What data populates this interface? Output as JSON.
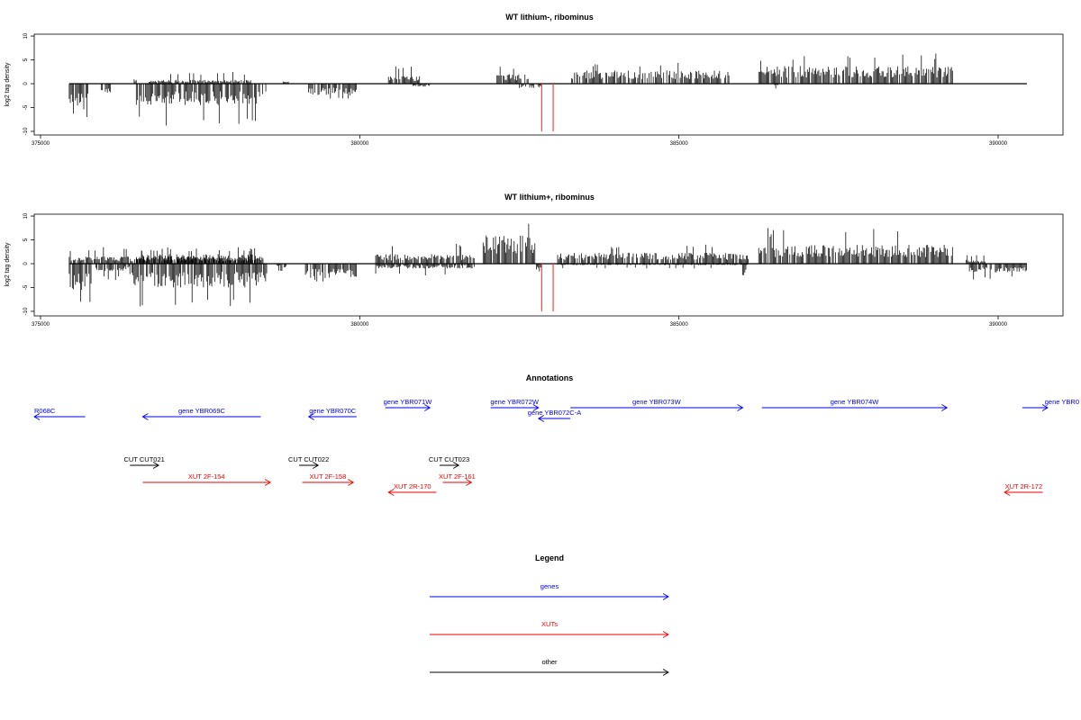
{
  "colors": {
    "genes": "#0000ee",
    "xuts": "#ee0000",
    "other": "#000000",
    "marker": "#ff3333"
  },
  "chart_data": [
    {
      "type": "bar",
      "title": "WT lithium-, ribominus",
      "ylabel": "log2 tag density",
      "xlim": [
        375000,
        391000
      ],
      "ylim": [
        -10,
        10
      ],
      "xticks": [
        "375000",
        "380000",
        "385000",
        "390000"
      ],
      "yticks": [
        "-10",
        "-5",
        "0",
        "5",
        "10"
      ],
      "grid": false,
      "markers_x": [
        382850,
        383030
      ],
      "segments": [
        {
          "start": 375450,
          "end": 375750,
          "sign": -1,
          "amp": 5.0,
          "spike": 7.0
        },
        {
          "start": 375950,
          "end": 376100,
          "sign": -1,
          "amp": 2.0,
          "spike": 3.5
        },
        {
          "start": 376450,
          "end": 376500,
          "sign": 1,
          "amp": 1.5,
          "spike": 3.3
        },
        {
          "start": 376500,
          "end": 378550,
          "sign": -1,
          "amp": 4.5,
          "spike": 9.0
        },
        {
          "start": 376700,
          "end": 378300,
          "sign": 1,
          "amp": 0.8,
          "spike": 2.5
        },
        {
          "start": 378800,
          "end": 378900,
          "sign": 1,
          "amp": 0.6,
          "spike": 1.8
        },
        {
          "start": 379200,
          "end": 379950,
          "sign": -1,
          "amp": 2.5,
          "spike": 3.5
        },
        {
          "start": 380450,
          "end": 380950,
          "sign": 1,
          "amp": 1.6,
          "spike": 4.0
        },
        {
          "start": 380800,
          "end": 381100,
          "sign": -1,
          "amp": 0.6,
          "spike": 3.5
        },
        {
          "start": 382150,
          "end": 382650,
          "sign": 1,
          "amp": 2.0,
          "spike": 3.9
        },
        {
          "start": 382500,
          "end": 382850,
          "sign": -1,
          "amp": 1.0,
          "spike": 3.0
        },
        {
          "start": 383300,
          "end": 385800,
          "sign": 1,
          "amp": 2.8,
          "spike": 4.5
        },
        {
          "start": 386250,
          "end": 389300,
          "sign": 1,
          "amp": 3.7,
          "spike": 6.4
        },
        {
          "start": 386500,
          "end": 386550,
          "sign": -1,
          "amp": 0.5,
          "spike": 1.0
        }
      ]
    },
    {
      "type": "bar",
      "title": "WT lithium+, ribominus",
      "ylabel": "log2 tag density",
      "xlim": [
        375000,
        391000
      ],
      "ylim": [
        -10,
        10
      ],
      "xticks": [
        "375000",
        "380000",
        "385000",
        "390000"
      ],
      "yticks": [
        "-10",
        "-5",
        "0",
        "5",
        "10"
      ],
      "grid": false,
      "markers_x": [
        382850,
        383030
      ],
      "segments": [
        {
          "start": 375450,
          "end": 375800,
          "sign": -1,
          "amp": 5.5,
          "spike": 9.5
        },
        {
          "start": 375450,
          "end": 378500,
          "sign": 1,
          "amp": 1.5,
          "spike": 3.5
        },
        {
          "start": 375850,
          "end": 376400,
          "sign": -1,
          "amp": 1.5,
          "spike": 3.5
        },
        {
          "start": 376400,
          "end": 378550,
          "sign": -1,
          "amp": 5.0,
          "spike": 10.0
        },
        {
          "start": 376500,
          "end": 378400,
          "sign": 1,
          "amp": 2.0,
          "spike": 3.3
        },
        {
          "start": 378700,
          "end": 378850,
          "sign": -1,
          "amp": 0.8,
          "spike": 1.8
        },
        {
          "start": 379150,
          "end": 379950,
          "sign": -1,
          "amp": 3.0,
          "spike": 4.5
        },
        {
          "start": 380250,
          "end": 381800,
          "sign": 1,
          "amp": 2.0,
          "spike": 4.5
        },
        {
          "start": 380250,
          "end": 381800,
          "sign": -1,
          "amp": 1.0,
          "spike": 2.5
        },
        {
          "start": 381900,
          "end": 382750,
          "sign": 1,
          "amp": 6.0,
          "spike": 9.5
        },
        {
          "start": 382750,
          "end": 382850,
          "sign": -1,
          "amp": 1.2,
          "spike": 1.8
        },
        {
          "start": 383100,
          "end": 386100,
          "sign": 1,
          "amp": 2.3,
          "spike": 4.0
        },
        {
          "start": 383100,
          "end": 386100,
          "sign": -1,
          "amp": 0.3,
          "spike": 1.0
        },
        {
          "start": 386000,
          "end": 386050,
          "sign": -1,
          "amp": 2.5,
          "spike": 3.5
        },
        {
          "start": 386250,
          "end": 389300,
          "sign": 1,
          "amp": 4.0,
          "spike": 7.5
        },
        {
          "start": 389500,
          "end": 389800,
          "sign": 1,
          "amp": 0.8,
          "spike": 1.8
        },
        {
          "start": 389550,
          "end": 390450,
          "sign": -1,
          "amp": 1.8,
          "spike": 3.5
        }
      ]
    }
  ],
  "annotations": {
    "title": "Annotations",
    "xlim": [
      375000,
      391000
    ],
    "features": [
      {
        "label": "R068C",
        "type": "genes",
        "start": 374880,
        "end": 375700,
        "strand": "-",
        "row": 1
      },
      {
        "label": "gene YBR069C",
        "type": "genes",
        "start": 376600,
        "end": 378450,
        "strand": "-",
        "row": 1
      },
      {
        "label": "gene YBR070C",
        "type": "genes",
        "start": 379200,
        "end": 379950,
        "strand": "-",
        "row": 1
      },
      {
        "label": "gene YBR071W",
        "type": "genes",
        "start": 380400,
        "end": 381100,
        "strand": "+",
        "row": 0
      },
      {
        "label": "gene YBR072W",
        "type": "genes",
        "start": 382050,
        "end": 382800,
        "strand": "+",
        "row": 0
      },
      {
        "label": "gene YBR072C-A",
        "type": "genes",
        "start": 382800,
        "end": 383300,
        "strand": "-",
        "row": 2
      },
      {
        "label": "gene YBR073W",
        "type": "genes",
        "start": 383300,
        "end": 386000,
        "strand": "+",
        "row": 0
      },
      {
        "label": "gene YBR074W",
        "type": "genes",
        "start": 386300,
        "end": 389200,
        "strand": "+",
        "row": 0
      },
      {
        "label": "gene YBR0",
        "type": "genes",
        "start": 390380,
        "end": 391000,
        "strand": "+",
        "row": 0
      },
      {
        "label": "CUT CUT021",
        "type": "other",
        "start": 376400,
        "end": 376850,
        "strand": "+",
        "row": 3
      },
      {
        "label": "CUT CUT022",
        "type": "other",
        "start": 379050,
        "end": 379350,
        "strand": "+",
        "row": 3
      },
      {
        "label": "CUT CUT023",
        "type": "other",
        "start": 381250,
        "end": 381550,
        "strand": "+",
        "row": 3
      },
      {
        "label": "XUT 2F-154",
        "type": "xuts",
        "start": 376600,
        "end": 378600,
        "strand": "+",
        "row": 4
      },
      {
        "label": "XUT 2F-158",
        "type": "xuts",
        "start": 379100,
        "end": 379900,
        "strand": "+",
        "row": 4
      },
      {
        "label": "XUT 2R-170",
        "type": "xuts",
        "start": 380450,
        "end": 381200,
        "strand": "-",
        "row": 5
      },
      {
        "label": "XUT 2F-161",
        "type": "xuts",
        "start": 381300,
        "end": 381750,
        "strand": "+",
        "row": 4
      },
      {
        "label": "XUT 2R-172",
        "type": "xuts",
        "start": 390100,
        "end": 390700,
        "strand": "-",
        "row": 5
      }
    ]
  },
  "legend": {
    "title": "Legend",
    "items": [
      {
        "label": "genes",
        "type": "genes"
      },
      {
        "label": "XUTs",
        "type": "xuts"
      },
      {
        "label": "other",
        "type": "other"
      }
    ]
  }
}
